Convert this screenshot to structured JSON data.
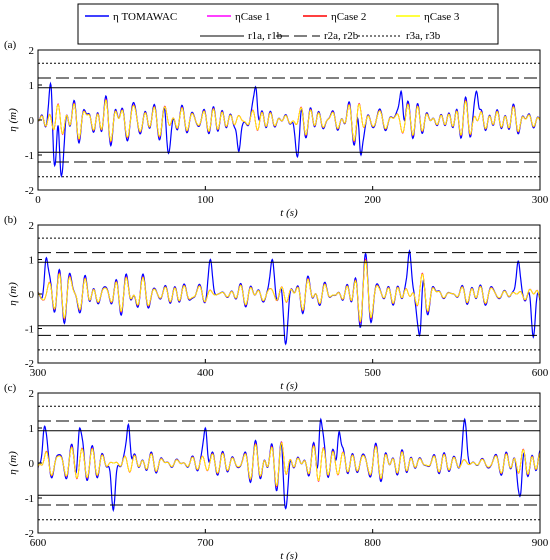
{
  "legend": {
    "row1": [
      {
        "label": "η TOMAWAC",
        "color": "#0000ff"
      },
      {
        "label": "ηCase 1",
        "color": "#ff00ff"
      },
      {
        "label": "ηCase 2",
        "color": "#ff0000"
      },
      {
        "label": "ηCase 3",
        "color": "#ffff00"
      }
    ],
    "row2": [
      {
        "label": "r1a, r1b",
        "style": "solid"
      },
      {
        "label": "r2a, r2b",
        "style": "dashed"
      },
      {
        "label": "r3a, r3b",
        "style": "dotted"
      }
    ]
  },
  "chart_data": [
    {
      "type": "line",
      "panel": "(a)",
      "xlabel": "t (s)",
      "ylabel": "η (m)",
      "xlim": [
        0,
        300
      ],
      "ylim": [
        -2,
        2
      ],
      "xticks": [
        0,
        100,
        200,
        300
      ],
      "yticks": [
        -2,
        -1,
        0,
        1,
        2
      ],
      "thresholds": [
        {
          "name": "r1a, r1b",
          "style": "solid",
          "values": [
            0.92,
            -0.92
          ]
        },
        {
          "name": "r2a, r2b",
          "style": "dashed",
          "values": [
            1.2,
            -1.2
          ]
        },
        {
          "name": "r3a, r3b",
          "style": "dotted",
          "values": [
            1.62,
            -1.62
          ]
        }
      ],
      "series": [
        {
          "name": "η TOMAWAC",
          "color": "#0000ff",
          "x_start": 0,
          "x_end": 300,
          "amplitude": 0.52,
          "seed": 3,
          "peaks": [
            [
              8,
              1.35
            ],
            [
              10,
              -1.3
            ],
            [
              14,
              -1.6
            ],
            [
              78,
              -0.95
            ],
            [
              120,
              -0.9
            ],
            [
              130,
              0.95
            ],
            [
              155,
              -1.05
            ],
            [
              193,
              -1.0
            ],
            [
              217,
              0.82
            ],
            [
              262,
              0.82
            ]
          ]
        },
        {
          "name": "ηCase 1",
          "color": "#ff00ff",
          "x_start": 0,
          "x_end": 300,
          "amplitude": 0.45,
          "seed": 3
        },
        {
          "name": "ηCase 2",
          "color": "#ff0000",
          "x_start": 0,
          "x_end": 300,
          "amplitude": 0.44,
          "seed": 3
        },
        {
          "name": "ηCase 3",
          "color": "#ffff00",
          "x_start": 0,
          "x_end": 300,
          "amplitude": 0.43,
          "seed": 3
        }
      ]
    },
    {
      "type": "line",
      "panel": "(b)",
      "xlabel": "t (s)",
      "ylabel": "η (m)",
      "xlim": [
        300,
        600
      ],
      "ylim": [
        -2,
        2
      ],
      "xticks": [
        300,
        400,
        500,
        600
      ],
      "yticks": [
        -2,
        -1,
        0,
        1,
        2
      ],
      "thresholds": [
        {
          "name": "r1a, r1b",
          "style": "solid",
          "values": [
            0.92,
            -0.92
          ]
        },
        {
          "name": "r2a, r2b",
          "style": "dashed",
          "values": [
            1.2,
            -1.2
          ]
        },
        {
          "name": "r3a, r3b",
          "style": "dotted",
          "values": [
            1.62,
            -1.62
          ]
        }
      ],
      "series": [
        {
          "name": "η TOMAWAC",
          "color": "#0000ff",
          "x_start": 300,
          "x_end": 600,
          "amplitude": 0.52,
          "seed": 7,
          "peaks": [
            [
              305,
              1.05
            ],
            [
              403,
              1.0
            ],
            [
              440,
              1.0
            ],
            [
              448,
              -1.45
            ],
            [
              522,
              1.25
            ],
            [
              528,
              -1.2
            ],
            [
              587,
              0.95
            ],
            [
              596,
              -1.25
            ]
          ]
        },
        {
          "name": "ηCase 1",
          "color": "#ff00ff",
          "x_start": 300,
          "x_end": 600,
          "amplitude": 0.45,
          "seed": 7
        },
        {
          "name": "ηCase 2",
          "color": "#ff0000",
          "x_start": 300,
          "x_end": 600,
          "amplitude": 0.44,
          "seed": 7
        },
        {
          "name": "ηCase 3",
          "color": "#ffff00",
          "x_start": 300,
          "x_end": 600,
          "amplitude": 0.43,
          "seed": 7
        }
      ]
    },
    {
      "type": "line",
      "panel": "(c)",
      "xlabel": "t (s)",
      "ylabel": "η (m)",
      "xlim": [
        600,
        900
      ],
      "ylim": [
        -2,
        2
      ],
      "xticks": [
        600,
        700,
        800,
        900
      ],
      "yticks": [
        -2,
        -1,
        0,
        1,
        2
      ],
      "thresholds": [
        {
          "name": "r1a, r1b",
          "style": "solid",
          "values": [
            0.92,
            -0.92
          ]
        },
        {
          "name": "r2a, r2b",
          "style": "dashed",
          "values": [
            1.2,
            -1.2
          ]
        },
        {
          "name": "r3a, r3b",
          "style": "dotted",
          "values": [
            1.62,
            -1.62
          ]
        }
      ],
      "series": [
        {
          "name": "η TOMAWAC",
          "color": "#0000ff",
          "x_start": 600,
          "x_end": 900,
          "amplitude": 0.52,
          "seed": 11,
          "peaks": [
            [
              604,
              1.05
            ],
            [
              625,
              1.0
            ],
            [
              645,
              -1.35
            ],
            [
              654,
              1.1
            ],
            [
              700,
              1.0
            ],
            [
              748,
              -1.3
            ],
            [
              769,
              1.25
            ],
            [
              780,
              0.9
            ],
            [
              855,
              1.25
            ],
            [
              888,
              -0.95
            ]
          ]
        },
        {
          "name": "ηCase 1",
          "color": "#ff00ff",
          "x_start": 600,
          "x_end": 900,
          "amplitude": 0.45,
          "seed": 11
        },
        {
          "name": "ηCase 2",
          "color": "#ff0000",
          "x_start": 600,
          "x_end": 900,
          "amplitude": 0.44,
          "seed": 11
        },
        {
          "name": "ηCase 3",
          "color": "#ffff00",
          "x_start": 600,
          "x_end": 900,
          "amplitude": 0.43,
          "seed": 11
        }
      ]
    }
  ]
}
